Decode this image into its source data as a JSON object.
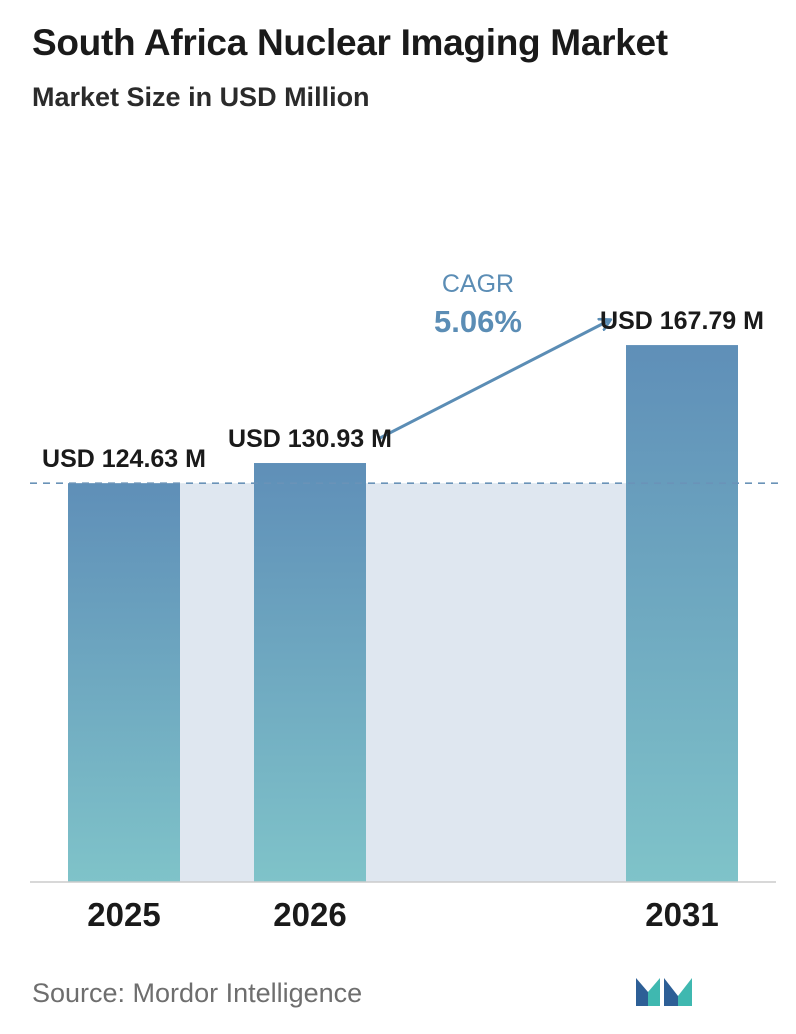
{
  "header": {
    "title": "South Africa Nuclear Imaging Market",
    "subtitle": "Market Size in USD Million"
  },
  "chart_data": {
    "type": "bar",
    "title": "South Africa Nuclear Imaging Market",
    "subtitle": "Market Size in USD Million",
    "categories": [
      "2025",
      "2026",
      "2031"
    ],
    "values": [
      124.63,
      130.93,
      167.79
    ],
    "value_labels": [
      "USD 124.63 M",
      "USD 130.93 M",
      "USD 167.79 M"
    ],
    "ylim": [
      0,
      210
    ],
    "reference_line": 124.63,
    "annotation": {
      "label": "CAGR",
      "value": "5.06%"
    },
    "grid": false,
    "colors": {
      "bar_top": "#5f8fb8",
      "bar_bottom": "#7fc3c9",
      "shaded_area": "#dfe7f0",
      "cagr_text": "#5b8db5",
      "arrow": "#5b8db5",
      "dashed_line": "#6a93b8",
      "axis": "#cccccc"
    }
  },
  "footer": {
    "source": "Source:  Mordor Intelligence"
  },
  "logo": {
    "icon": "mordor-intelligence-logo",
    "colors": [
      "#2d5f96",
      "#3fb8b0"
    ]
  }
}
